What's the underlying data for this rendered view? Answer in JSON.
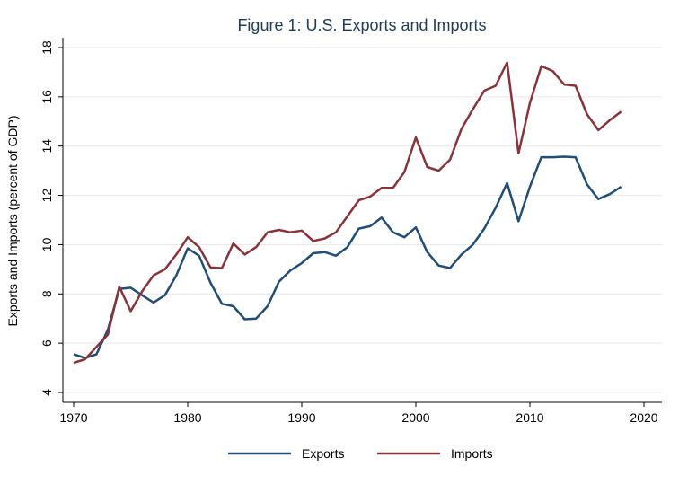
{
  "chart_data": {
    "type": "line",
    "title": "Figure 1: U.S. Exports and Imports",
    "xlabel": "",
    "ylabel": "Exports and Imports (percent of GDP)",
    "xlim": [
      1970,
      2020
    ],
    "ylim": [
      4,
      18
    ],
    "x_ticks": [
      1970,
      1980,
      1990,
      2000,
      2010,
      2020
    ],
    "y_ticks": [
      4,
      6,
      8,
      10,
      12,
      14,
      16,
      18
    ],
    "grid": "horizontal",
    "legend_position": "bottom",
    "x": [
      1970,
      1971,
      1972,
      1973,
      1974,
      1975,
      1976,
      1977,
      1978,
      1979,
      1980,
      1981,
      1982,
      1983,
      1984,
      1985,
      1986,
      1987,
      1988,
      1989,
      1990,
      1991,
      1992,
      1993,
      1994,
      1995,
      1996,
      1997,
      1998,
      1999,
      2000,
      2001,
      2002,
      2003,
      2004,
      2005,
      2006,
      2007,
      2008,
      2009,
      2010,
      2011,
      2012,
      2013,
      2014,
      2015,
      2016,
      2017,
      2018
    ],
    "series": [
      {
        "name": "Exports",
        "color": "#1f4e79",
        "values": [
          5.55,
          5.4,
          5.55,
          6.55,
          8.2,
          8.25,
          7.95,
          7.65,
          7.95,
          8.75,
          9.85,
          9.55,
          8.45,
          7.6,
          7.5,
          6.97,
          7.0,
          7.5,
          8.5,
          8.95,
          9.25,
          9.65,
          9.7,
          9.55,
          9.9,
          10.65,
          10.75,
          11.1,
          10.5,
          10.3,
          10.7,
          9.7,
          9.15,
          9.05,
          9.6,
          10.0,
          10.65,
          11.5,
          12.5,
          10.95,
          12.35,
          13.55,
          13.55,
          13.57,
          13.55,
          12.45,
          11.85,
          12.05,
          12.35
        ]
      },
      {
        "name": "Imports",
        "color": "#8b3239",
        "values": [
          5.2,
          5.35,
          5.85,
          6.35,
          8.3,
          7.3,
          8.1,
          8.75,
          9.0,
          9.6,
          10.3,
          9.9,
          9.07,
          9.05,
          10.05,
          9.6,
          9.9,
          10.5,
          10.6,
          10.5,
          10.57,
          10.15,
          10.25,
          10.5,
          11.15,
          11.8,
          11.95,
          12.3,
          12.3,
          12.95,
          14.35,
          13.15,
          13.0,
          13.45,
          14.7,
          15.5,
          16.25,
          16.45,
          17.4,
          13.7,
          15.75,
          17.25,
          17.05,
          16.5,
          16.45,
          15.3,
          14.65,
          15.05,
          15.4
        ]
      }
    ]
  }
}
